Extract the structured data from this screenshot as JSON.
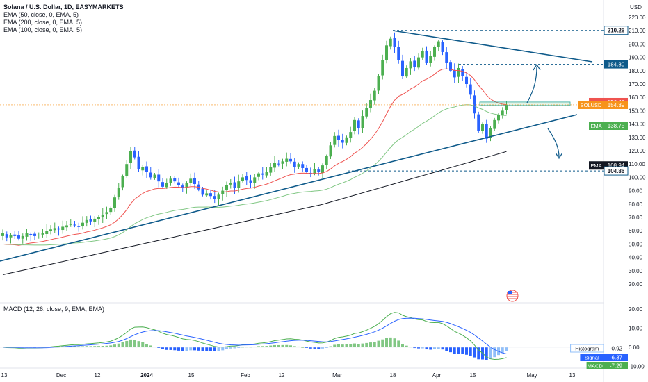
{
  "header": {
    "title": "Solana / U.S. Dollar, 1D, EASYMARKETS",
    "indicators": [
      "EMA (50, close, 0, EMA, 5)",
      "EMA (200, close, 0, EMA, 5)",
      "EMA (100, close, 0, EMA, 5)"
    ],
    "currency": "USD"
  },
  "macd_panel": {
    "title": "MACD (12, 26, close, 9, EMA, EMA)"
  },
  "colors": {
    "up": "#4caf50",
    "down": "#2962ff",
    "ema50": "#ef5350",
    "ema100": "#81c784",
    "ema200": "#131722",
    "trendline": "#0e5a8a",
    "macd": "#4caf50",
    "signal": "#2962ff",
    "histogram_pos": "#81c784",
    "histogram_neg": "#2962ff"
  },
  "chart_data": {
    "type": "candlestick",
    "symbol": "SOLUSD",
    "timeframe": "1D",
    "price_axis_ticks": [
      20,
      30,
      40,
      50,
      60,
      70,
      80,
      90,
      100,
      110,
      120,
      130,
      140,
      150,
      160,
      170,
      180,
      190,
      200,
      210,
      220
    ],
    "macd_axis_ticks": [
      -10,
      0,
      10,
      20
    ],
    "macd_axis_tick_labels": [
      "-10.00",
      "0.00",
      "10.00",
      "20.00"
    ],
    "time_axis_ticks": [
      "13",
      "Dec",
      "12",
      "2024",
      "15",
      "Feb",
      "12",
      "Mar",
      "18",
      "Apr",
      "15",
      "May",
      "13"
    ],
    "price_labels": [
      {
        "text": "210.26",
        "value": 210.26,
        "style": "outline"
      },
      {
        "text": "184.80",
        "value": 184.8,
        "style": "filled",
        "color": "#0e5a8a"
      },
      {
        "text": "155.98",
        "value": 155.98,
        "style": "filled",
        "color": "#0e5a8a"
      },
      {
        "text": "156.47",
        "value": 156.47,
        "style": "filled",
        "color": "#ef5350",
        "tag": "EMA"
      },
      {
        "text": "154.39",
        "value": 154.39,
        "style": "filled",
        "color": "#f7931a",
        "tag": "SOLUSD"
      },
      {
        "text": "138.75",
        "value": 138.75,
        "style": "filled",
        "color": "#4caf50",
        "tag": "EMA"
      },
      {
        "text": "108.94",
        "value": 108.94,
        "style": "filled",
        "color": "#131722",
        "tag": "EMA"
      },
      {
        "text": "104.86",
        "value": 104.86,
        "style": "outline"
      }
    ],
    "macd_labels": [
      {
        "name": "Histogram",
        "text": "-0.92",
        "value": -0.92,
        "color": "#90bff9"
      },
      {
        "name": "Signal",
        "text": "-6.37",
        "value": -6.37,
        "color": "#2962ff"
      },
      {
        "name": "MACD",
        "text": "-7.29",
        "value": -7.29,
        "color": "#4caf50"
      }
    ],
    "horizontal_levels": [
      210.26,
      184.8,
      104.86
    ],
    "closes": [
      58,
      55,
      57,
      56,
      54,
      56,
      58,
      57,
      56,
      57,
      58,
      60,
      61,
      62,
      61,
      63,
      64,
      65,
      64,
      63,
      66,
      68,
      67,
      69,
      70,
      72,
      74,
      77,
      85,
      92,
      101,
      110,
      120,
      115,
      106,
      108,
      104,
      100,
      102,
      97,
      93,
      96,
      99,
      97,
      94,
      92,
      96,
      99,
      95,
      91,
      87,
      88,
      86,
      84,
      87,
      90,
      94,
      96,
      92,
      97,
      100,
      98,
      96,
      100,
      103,
      102,
      104,
      108,
      111,
      110,
      112,
      114,
      112,
      108,
      110,
      107,
      104,
      103,
      106,
      104,
      109,
      116,
      124,
      131,
      128,
      126,
      130,
      134,
      143,
      137,
      146,
      152,
      158,
      165,
      176,
      188,
      199,
      204,
      198,
      188,
      176,
      182,
      187,
      183,
      190,
      195,
      186,
      191,
      198,
      202,
      194,
      186,
      180,
      175,
      182,
      176,
      170,
      162,
      148,
      135,
      140,
      129,
      137,
      143,
      147,
      150,
      154.39
    ]
  }
}
